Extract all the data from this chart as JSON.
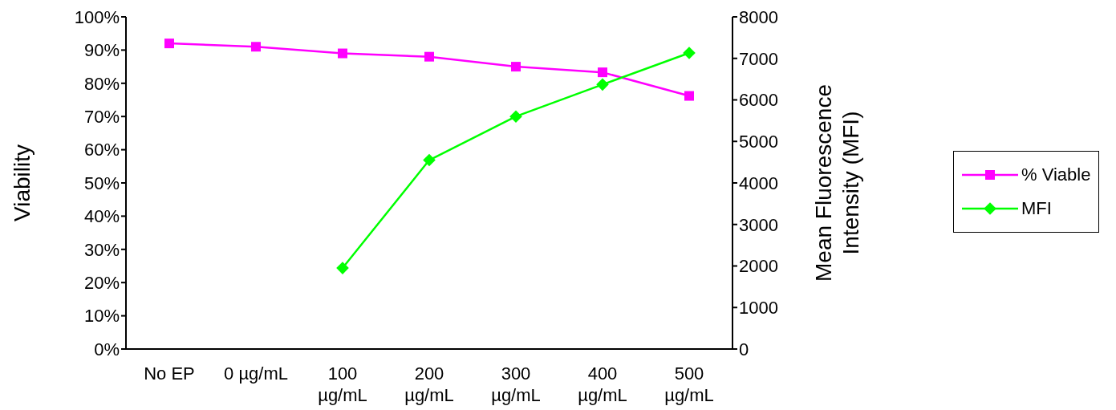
{
  "chart_data": {
    "type": "line",
    "ylabel": "Viability",
    "y2label": "Mean Fluorescence Intensity (MFI)",
    "categories": [
      "No EP",
      "0 µg/mL",
      "100 µg/mL",
      "200 µg/mL",
      "300 µg/mL",
      "400 µg/mL",
      "500 µg/mL"
    ],
    "series": [
      {
        "name": "% Viable",
        "color": "#ff00ff",
        "marker": "square",
        "values": [
          92,
          91,
          89,
          88,
          85,
          83.3,
          76.2
        ]
      },
      {
        "name": "MFI",
        "color": "#00ff00",
        "marker": "diamond",
        "axis": "y2",
        "values": [
          null,
          null,
          1950,
          4550,
          5600,
          6370,
          7130
        ]
      }
    ],
    "ylim": [
      0,
      100
    ],
    "yticks": [
      {
        "value": 0,
        "label": "0%"
      },
      {
        "value": 10,
        "label": "10%"
      },
      {
        "value": 20,
        "label": "20%"
      },
      {
        "value": 30,
        "label": "30%"
      },
      {
        "value": 40,
        "label": "40%"
      },
      {
        "value": 50,
        "label": "50%"
      },
      {
        "value": 60,
        "label": "60%"
      },
      {
        "value": 70,
        "label": "70%"
      },
      {
        "value": 80,
        "label": "80%"
      },
      {
        "value": 90,
        "label": "90%"
      },
      {
        "value": 100,
        "label": "100%"
      }
    ],
    "y2lim": [
      0,
      8000
    ],
    "y2ticks": [
      0,
      1000,
      2000,
      3000,
      4000,
      5000,
      6000,
      7000,
      8000
    ],
    "grid": false,
    "legend": "right",
    "line_style": "solid"
  }
}
